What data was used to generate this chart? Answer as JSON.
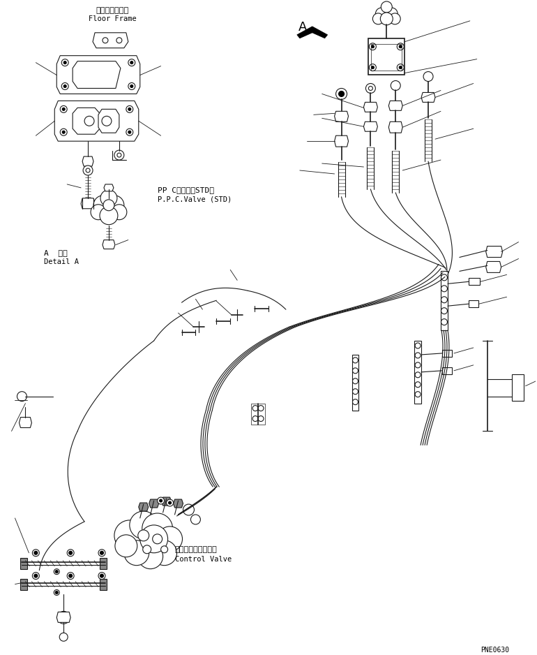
{
  "bg_color": "#ffffff",
  "line_color": "#1a1a1a",
  "fig_width": 7.7,
  "fig_height": 9.38,
  "dpi": 100,
  "part_code": "PNE0630",
  "labels": {
    "floor_frame_jp": "フロアフレーム",
    "floor_frame_en": "Floor Frame",
    "ppc_valve_jp": "PP Cバルブ（STD）",
    "ppc_valve_en": "P.P.C.Valve (STD)",
    "detail_a_jp": "A  詳細",
    "detail_a_en": "Detail A",
    "control_valve_jp": "コントロールバルブ",
    "control_valve_en": "Control Valve",
    "A_label": "A"
  }
}
